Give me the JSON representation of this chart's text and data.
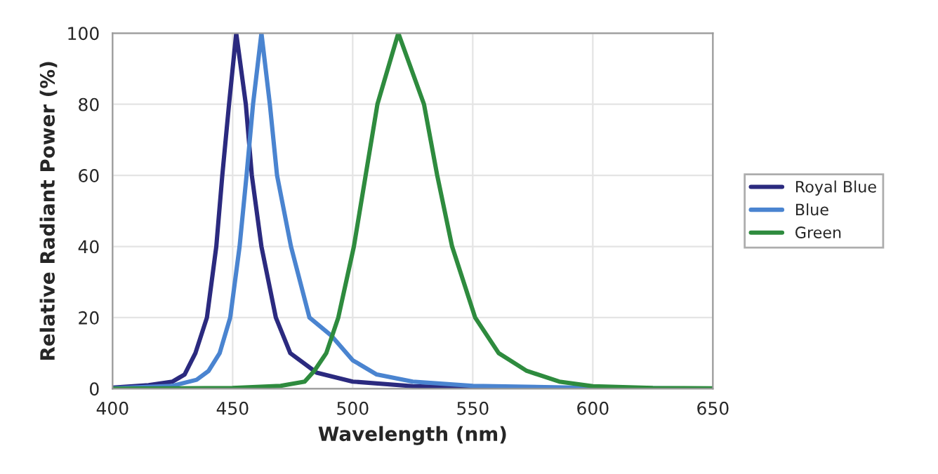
{
  "chart_data": {
    "type": "line",
    "xlabel": "Wavelength (nm)",
    "ylabel": "Relative Radiant Power (%)",
    "xlim": [
      400,
      650
    ],
    "xticks": [
      400,
      450,
      500,
      550,
      600,
      650
    ],
    "ylim": [
      0,
      100
    ],
    "yticks": [
      0,
      20,
      40,
      60,
      80,
      100
    ],
    "grid": true,
    "legend": "right",
    "marker": "none",
    "line_style": "solid",
    "series": [
      {
        "name": "Royal Blue",
        "color": "#2b2a7f",
        "x": [
          400,
          415,
          425,
          430,
          434.5,
          439.3,
          443.2,
          445.7,
          448.5,
          451.5,
          455.5,
          458,
          462,
          468,
          474,
          485,
          500,
          525,
          550,
          600,
          650
        ],
        "values": [
          0.3,
          1,
          2,
          4,
          10,
          20,
          40,
          60,
          80,
          100,
          80,
          60,
          40,
          20,
          10,
          4.5,
          2,
          0.7,
          0.3,
          0.1,
          0
        ]
      },
      {
        "name": "Blue",
        "color": "#4a84d0",
        "x": [
          400,
          425,
          435,
          440,
          444.6,
          449,
          452.9,
          455.8,
          458.5,
          462,
          465.5,
          468.5,
          474.3,
          482,
          491,
          500,
          510,
          525,
          550,
          600,
          650
        ],
        "values": [
          0.1,
          0.8,
          2.5,
          5,
          10,
          20,
          40,
          60,
          80,
          100,
          80,
          60,
          40,
          20,
          15,
          8,
          4,
          2,
          0.8,
          0.2,
          0
        ]
      },
      {
        "name": "Green",
        "color": "#2e8b3e",
        "x": [
          400,
          450,
          470,
          480,
          484,
          489,
          494,
          500.5,
          505.4,
          510.3,
          519,
          529.7,
          535.2,
          541.4,
          551,
          560.8,
          572.5,
          586,
          600,
          625,
          650
        ],
        "values": [
          0,
          0.2,
          0.8,
          2,
          5,
          10,
          20,
          40,
          60,
          80,
          100,
          80,
          60,
          40,
          20,
          10,
          5,
          2,
          0.7,
          0.2,
          0.1
        ]
      }
    ]
  }
}
